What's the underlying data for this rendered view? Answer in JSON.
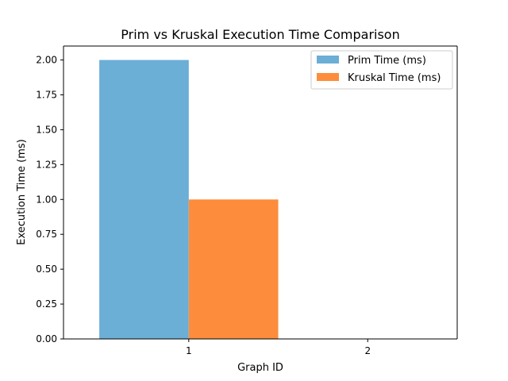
{
  "chart_data": {
    "type": "bar",
    "title": "Prim vs Kruskal Execution Time Comparison",
    "xlabel": "Graph ID",
    "ylabel": "Execution Time (ms)",
    "categories": [
      "1",
      "2"
    ],
    "series": [
      {
        "name": "Prim Time (ms)",
        "values": [
          2.0,
          0.0
        ],
        "color": "#6baed6"
      },
      {
        "name": "Kruskal Time (ms)",
        "values": [
          1.0,
          0.0
        ],
        "color": "#fd8d3c"
      }
    ],
    "ylim": [
      0,
      2.1
    ],
    "yticks": [
      0.0,
      0.25,
      0.5,
      0.75,
      1.0,
      1.25,
      1.5,
      1.75,
      2.0
    ],
    "ytick_labels": [
      "0.00",
      "0.25",
      "0.50",
      "0.75",
      "1.00",
      "1.25",
      "1.50",
      "1.75",
      "2.00"
    ],
    "grid": false,
    "legend_position": "top-right"
  }
}
